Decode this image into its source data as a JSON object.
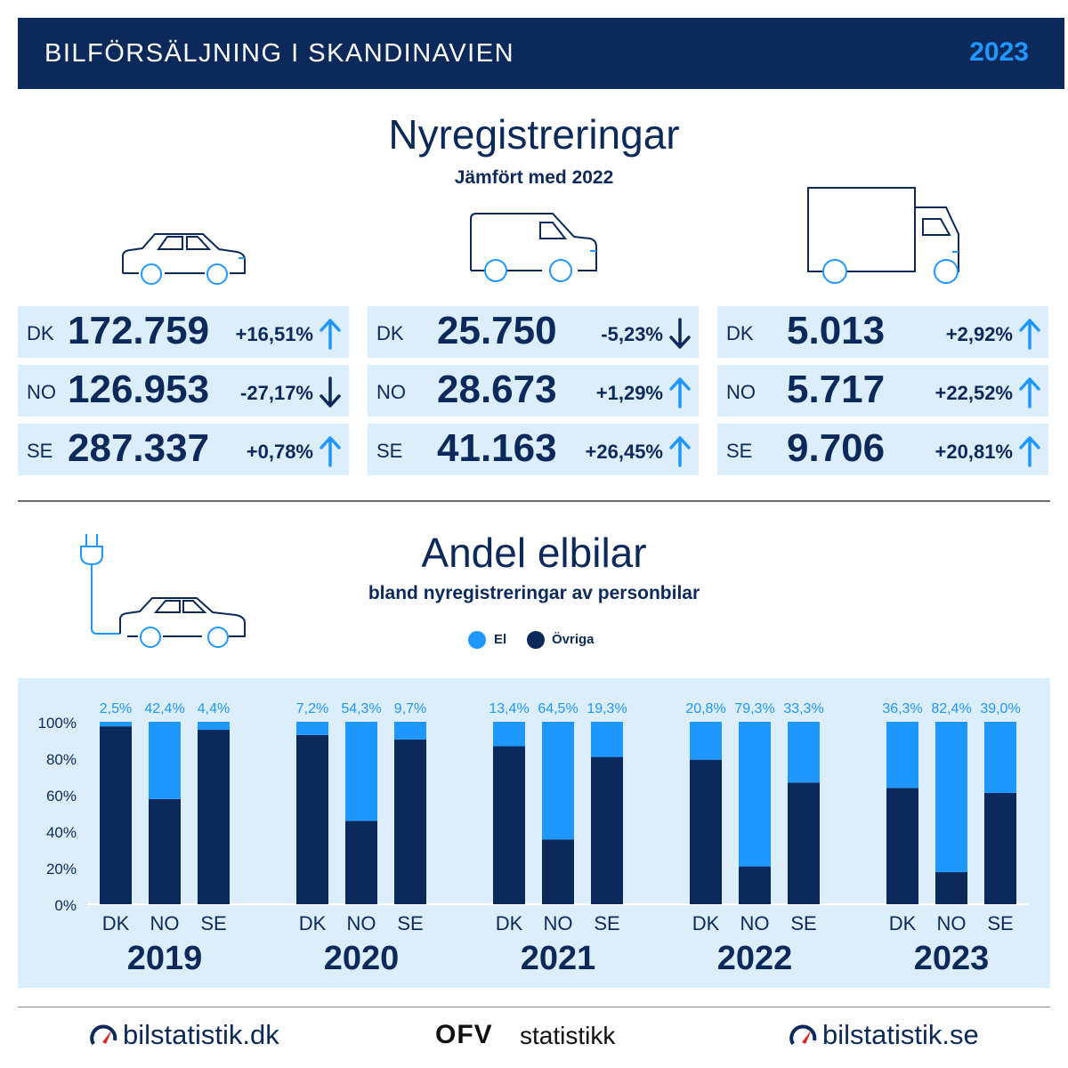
{
  "header": {
    "title": "BILFÖRSÄLJNING I SKANDINAVIEN",
    "year": "2023"
  },
  "registrations": {
    "title": "Nyregistreringar",
    "subtitle": "Jämfört med 2022",
    "vehicle_icons": [
      "car-icon",
      "van-icon",
      "truck-icon"
    ],
    "groups": [
      {
        "vehicle": "car",
        "rows": [
          {
            "country": "DK",
            "value": "172.759",
            "change": "+16,51%",
            "direction": "up"
          },
          {
            "country": "NO",
            "value": "126.953",
            "change": "-27,17%",
            "direction": "down"
          },
          {
            "country": "SE",
            "value": "287.337",
            "change": "+0,78%",
            "direction": "up"
          }
        ]
      },
      {
        "vehicle": "van",
        "rows": [
          {
            "country": "DK",
            "value": "25.750",
            "change": "-5,23%",
            "direction": "down"
          },
          {
            "country": "NO",
            "value": "28.673",
            "change": "+1,29%",
            "direction": "up"
          },
          {
            "country": "SE",
            "value": "41.163",
            "change": "+26,45%",
            "direction": "up"
          }
        ]
      },
      {
        "vehicle": "truck",
        "rows": [
          {
            "country": "DK",
            "value": "5.013",
            "change": "+2,92%",
            "direction": "up"
          },
          {
            "country": "NO",
            "value": "5.717",
            "change": "+22,52%",
            "direction": "up"
          },
          {
            "country": "SE",
            "value": "9.706",
            "change": "+20,81%",
            "direction": "up"
          }
        ]
      }
    ]
  },
  "ev_share": {
    "title": "Andel elbilar",
    "subtitle": "bland nyregistreringar av personbilar",
    "legend": [
      {
        "label": "El",
        "color": "#1e97ff"
      },
      {
        "label": "Övriga",
        "color": "#0b2a5b"
      }
    ]
  },
  "chart_data": {
    "type": "bar",
    "stacked": true,
    "years": [
      "2019",
      "2020",
      "2021",
      "2022",
      "2023"
    ],
    "categories": [
      "DK",
      "NO",
      "SE"
    ],
    "series": [
      {
        "name": "El",
        "color": "#1e97ff",
        "values": [
          [
            2.5,
            42.4,
            4.4
          ],
          [
            7.2,
            54.3,
            9.7
          ],
          [
            13.4,
            64.5,
            19.3
          ],
          [
            20.8,
            79.3,
            33.3
          ],
          [
            36.3,
            82.4,
            39.0
          ]
        ],
        "labels": [
          [
            "2,5%",
            "42,4%",
            "4,4%"
          ],
          [
            "7,2%",
            "54,3%",
            "9,7%"
          ],
          [
            "13,4%",
            "64,5%",
            "19,3%"
          ],
          [
            "20,8%",
            "79,3%",
            "33,3%"
          ],
          [
            "36,3%",
            "82,4%",
            "39,0%"
          ]
        ]
      },
      {
        "name": "Övriga",
        "color": "#0b2a5b"
      }
    ],
    "yticks": [
      "100%",
      "80%",
      "60%",
      "40%",
      "20%",
      "0%"
    ],
    "ylim": [
      0,
      100
    ],
    "grid": false,
    "legend_position": "top-center"
  },
  "footer": {
    "left": "bilstatistik.dk",
    "center_logo": "OFV",
    "center": "statistikk",
    "right": "bilstatistik.se"
  }
}
